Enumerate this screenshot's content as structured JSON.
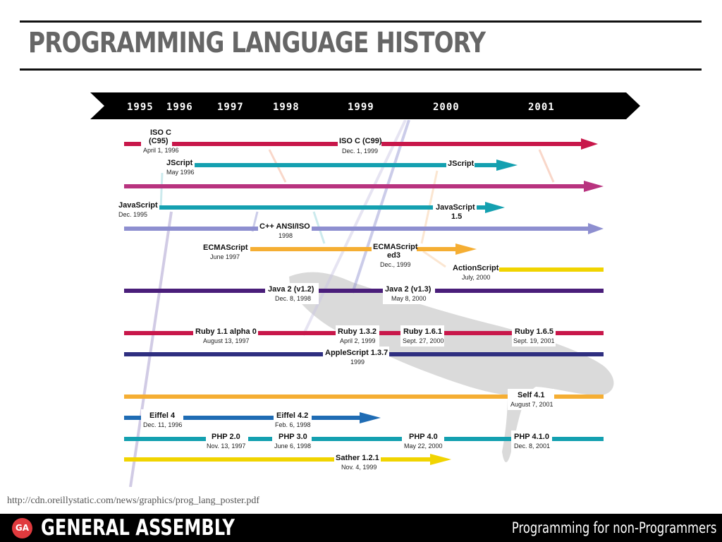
{
  "header": {
    "title": "PROGRAMMING LANGUAGE HISTORY"
  },
  "timeline": {
    "years": [
      "1995",
      "1996",
      "1997",
      "1998",
      "1999",
      "2000",
      "2001"
    ]
  },
  "releases": [
    {
      "name": "ISO C",
      "name2": "(C95)",
      "date": "April 1, 1996"
    },
    {
      "name": "ISO C (C99)",
      "date": "Dec. 1, 1999"
    },
    {
      "name": "JScript",
      "date": "May 1996"
    },
    {
      "name": "JScript",
      "date": ""
    },
    {
      "name": "JavaScript",
      "date": "Dec. 1995"
    },
    {
      "name": "JavaScript",
      "name2": "1.5",
      "date": ""
    },
    {
      "name": "C++ ANSI/ISO",
      "date": "1998"
    },
    {
      "name": "ECMAScript",
      "date": "June 1997"
    },
    {
      "name": "ECMAScript",
      "name2": "ed3",
      "date": "Dec., 1999"
    },
    {
      "name": "ActionScript",
      "date": "July, 2000"
    },
    {
      "name": "Java 2 (v1.2)",
      "date": "Dec. 8, 1998"
    },
    {
      "name": "Java 2 (v1.3)",
      "date": "May 8, 2000"
    },
    {
      "name": "Ruby 1.1 alpha 0",
      "date": "August 13, 1997"
    },
    {
      "name": "Ruby 1.3.2",
      "date": "April 2, 1999"
    },
    {
      "name": "Ruby 1.6.1",
      "date": "Sept. 27, 2000"
    },
    {
      "name": "Ruby 1.6.5",
      "date": "Sept. 19, 2001"
    },
    {
      "name": "AppleScript 1.3.7",
      "date": "1999"
    },
    {
      "name": "Self 4.1",
      "date": "August 7, 2001"
    },
    {
      "name": "Eiffel 4",
      "date": "Dec. 11, 1996"
    },
    {
      "name": "Eiffel 4.2",
      "date": "Feb. 6, 1998"
    },
    {
      "name": "PHP 2.0",
      "date": "Nov. 13, 1997"
    },
    {
      "name": "PHP 3.0",
      "date": "June 6, 1998"
    },
    {
      "name": "PHP 4.0",
      "date": "May 22, 2000"
    },
    {
      "name": "PHP 4.1.0",
      "date": "Dec. 8, 2001"
    },
    {
      "name": "Sather 1.2.1",
      "date": "Nov. 4, 1999"
    }
  ],
  "source_url": "http://cdn.oreillystatic.com/news/graphics/prog_lang_poster.pdf",
  "footer": {
    "logo_text": "GA",
    "brand": "GENERAL ASSEMBLY",
    "course": "Programming for non-Programmers"
  },
  "colors": {
    "c": "#c8174a",
    "jscript": "#14a0b0",
    "javascript_line": "#b8337f",
    "cpp": "#8e8fd0",
    "ecmascript": "#f5ae33",
    "actionscript": "#f1d400",
    "java": "#4a1e7a",
    "ruby": "#c8174a",
    "applescript": "#2f2f80",
    "self": "#f5ae33",
    "eiffel": "#1f6cb4",
    "php": "#14a0b0",
    "sather": "#f1d400"
  }
}
